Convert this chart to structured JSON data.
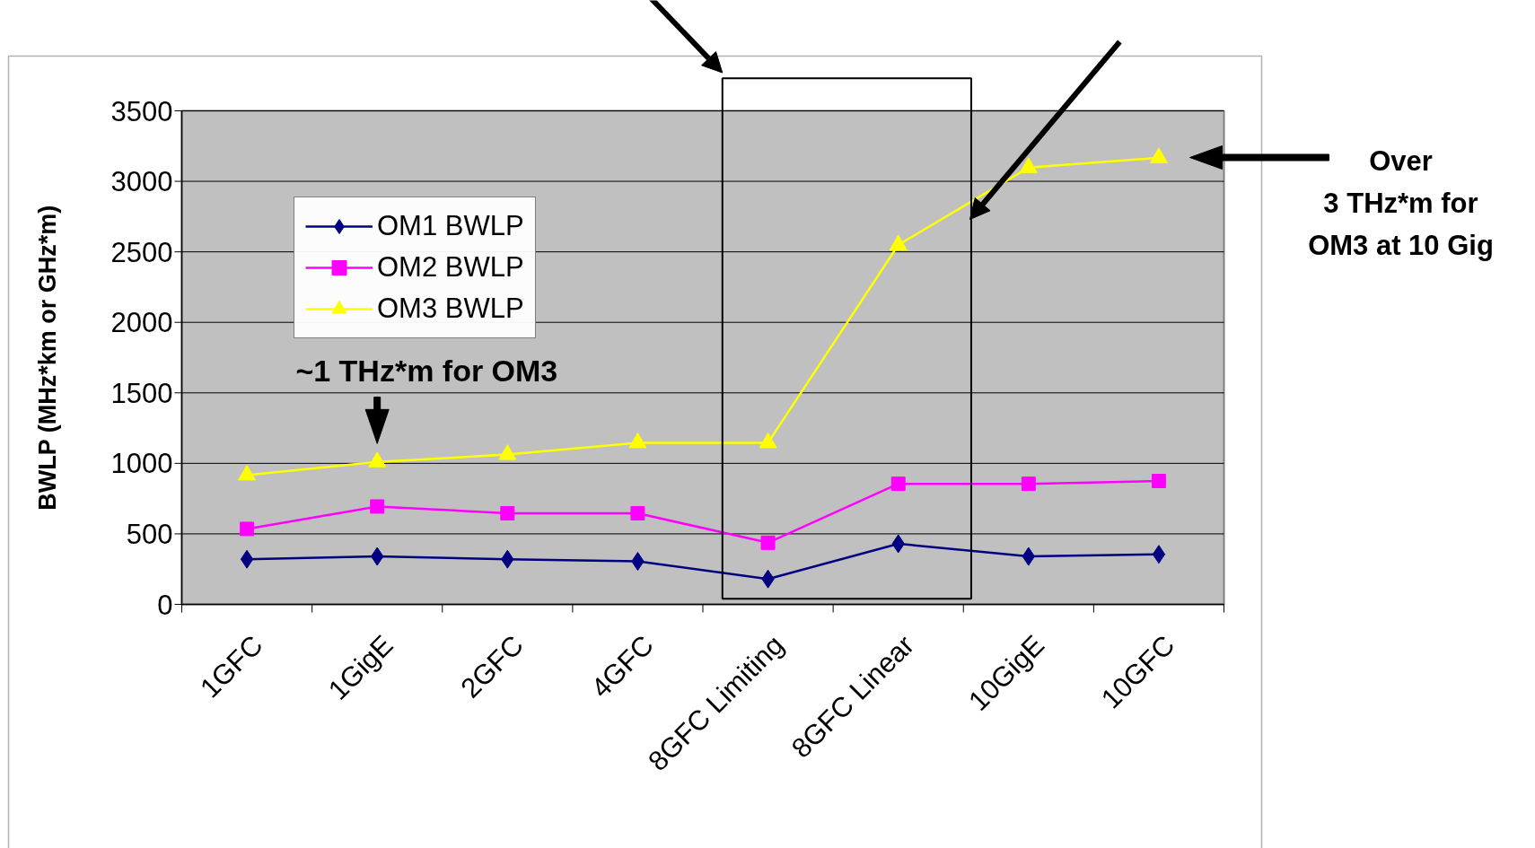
{
  "chart_data": {
    "type": "line",
    "ylabel": "BWLP (MHz*km or GHz*m)",
    "categories": [
      "1GFC",
      "1GigE",
      "2GFC",
      "4GFC",
      "8GFC Limiting",
      "8GFC Linear",
      "10GigE",
      "10GFC"
    ],
    "series": [
      {
        "name": "OM1 BWLP",
        "color": "#000080",
        "marker": "diamond",
        "values": [
          320,
          340,
          320,
          305,
          180,
          430,
          340,
          355
        ]
      },
      {
        "name": "OM2 BWLP",
        "color": "#ff00ff",
        "marker": "square",
        "values": [
          535,
          694,
          646,
          646,
          437,
          855,
          855,
          875
        ]
      },
      {
        "name": "OM3 BWLP",
        "color": "#ffff00",
        "marker": "triangle",
        "values": [
          917,
          1010,
          1062,
          1146,
          1146,
          2549,
          3097,
          3167
        ]
      }
    ],
    "ylim": [
      0,
      3500
    ],
    "yticks": [
      0,
      500,
      1000,
      1500,
      2000,
      2500,
      3000,
      3500
    ],
    "grid": "y",
    "legend": "top left",
    "annotations": [
      {
        "text": "~1 THz*m for OM3",
        "x": "1GigE",
        "y": 1010
      },
      "Over\n3 THz*m for\nOM3 at 10 Gig"
    ]
  }
}
